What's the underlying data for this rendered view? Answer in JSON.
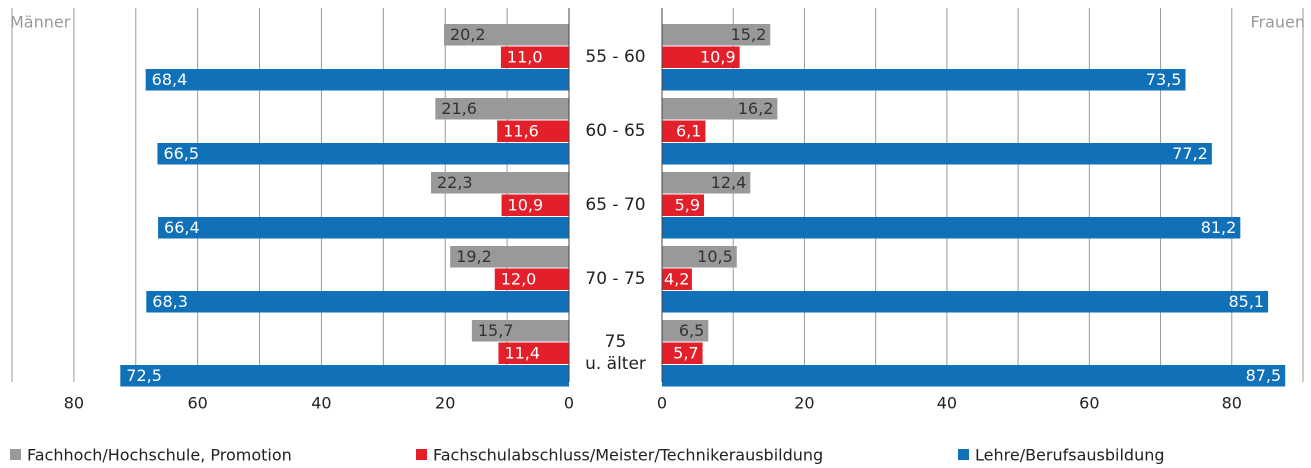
{
  "chart_data": {
    "type": "bar",
    "left_title": "Männer",
    "right_title": "Frauen",
    "categories": [
      "55 - 60",
      "60 - 65",
      "65 - 70",
      "70 - 75",
      "75\nu. älter"
    ],
    "xlim": [
      0,
      90
    ],
    "xticks": [
      0,
      20,
      40,
      60,
      80
    ],
    "grid": true,
    "series": [
      {
        "name": "Fachhoch/Hochschule, Promotion",
        "color": "#999999",
        "left_values": [
          20.2,
          21.6,
          22.3,
          19.2,
          15.7
        ],
        "left_value_labels": [
          "20,2",
          "21,6",
          "22,3",
          "19,2",
          "15,7"
        ],
        "right_values": [
          15.2,
          16.2,
          12.4,
          10.5,
          6.5
        ],
        "right_value_labels": [
          "15,2",
          "16,2",
          "12,4",
          "10,5",
          "6,5"
        ]
      },
      {
        "name": "Fachschulabschluss/Meister/Technikerausbildung",
        "color": "#e3202a",
        "left_values": [
          11.0,
          11.6,
          10.9,
          12.0,
          11.4
        ],
        "left_value_labels": [
          "11,0",
          "11,6",
          "10,9",
          "12,0",
          "11,4"
        ],
        "right_values": [
          10.9,
          6.1,
          5.9,
          4.2,
          5.7
        ],
        "right_value_labels": [
          "10,9",
          "6,1",
          "5,9",
          "4,2",
          "5,7"
        ]
      },
      {
        "name": "Lehre/Berufsausbildung",
        "color": "#1070b8",
        "left_values": [
          68.4,
          66.5,
          66.4,
          68.3,
          72.5
        ],
        "left_value_labels": [
          "68,4",
          "66,5",
          "66,4",
          "68,3",
          "72,5"
        ],
        "right_values": [
          73.5,
          77.2,
          81.2,
          85.1,
          87.5
        ],
        "right_value_labels": [
          "73,5",
          "77,2",
          "81,2",
          "85,1",
          "87,5"
        ]
      }
    ]
  }
}
